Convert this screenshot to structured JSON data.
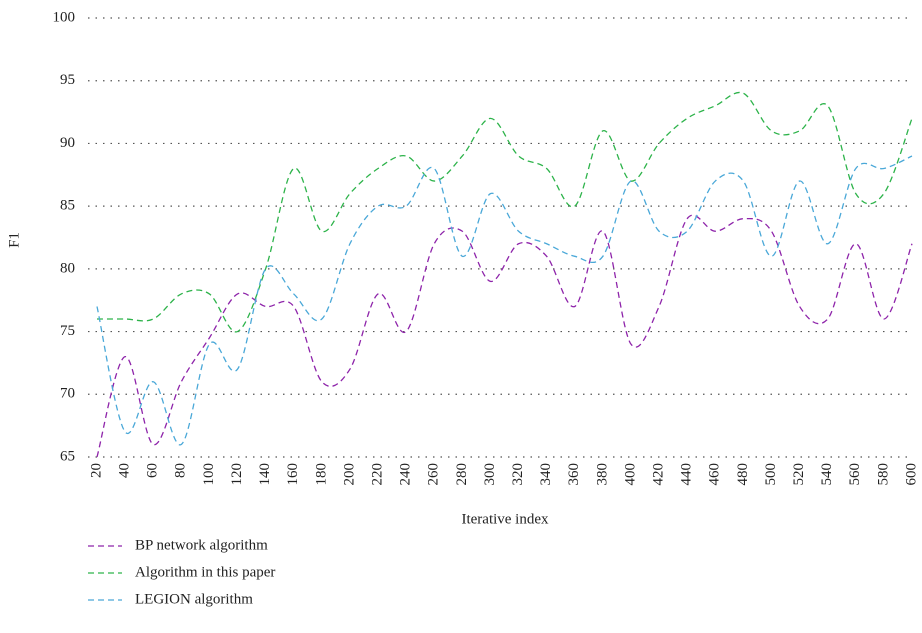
{
  "chart_data": {
    "type": "line",
    "xlabel": "Iterative index",
    "ylabel": "F1",
    "x": [
      20,
      40,
      60,
      80,
      100,
      120,
      140,
      160,
      180,
      200,
      220,
      240,
      260,
      280,
      300,
      320,
      340,
      360,
      380,
      400,
      420,
      440,
      460,
      480,
      500,
      520,
      540,
      560,
      580,
      600
    ],
    "xlim": [
      20,
      600
    ],
    "xticks": [
      20,
      40,
      60,
      80,
      100,
      120,
      140,
      160,
      180,
      200,
      220,
      240,
      260,
      280,
      300,
      320,
      340,
      360,
      380,
      400,
      420,
      440,
      460,
      480,
      500,
      520,
      540,
      560,
      580,
      600
    ],
    "ylim": [
      65,
      100
    ],
    "yticks": [
      65,
      70,
      75,
      80,
      85,
      90,
      95,
      100
    ],
    "grid": true,
    "legend": "bottom-left",
    "series": [
      {
        "name": "BP network algorithm",
        "color": "#8e24aa",
        "values": [
          65,
          73,
          66,
          71,
          74.5,
          78,
          77,
          77,
          71,
          72,
          78,
          75,
          82,
          83,
          79,
          82,
          81,
          77,
          83,
          74,
          77,
          84,
          83,
          84,
          83,
          77,
          76,
          82,
          76,
          82
        ]
      },
      {
        "name": "Algorithm in this paper",
        "color": "#2db34a",
        "values": [
          76,
          76,
          76,
          78,
          78,
          75,
          80,
          88,
          83,
          86,
          88,
          89,
          87,
          89,
          92,
          89,
          88,
          85,
          91,
          87,
          90,
          92,
          93,
          94,
          91,
          91,
          93,
          86,
          86,
          92
        ]
      },
      {
        "name": "LEGION algorithm",
        "color": "#4aa8d8",
        "values": [
          77,
          67,
          71,
          66,
          74,
          72,
          80,
          78,
          76,
          82,
          85,
          85,
          88,
          81,
          86,
          83,
          82,
          81,
          81,
          87,
          83,
          83,
          87,
          87,
          81,
          87,
          82,
          88,
          88,
          89
        ]
      }
    ]
  }
}
